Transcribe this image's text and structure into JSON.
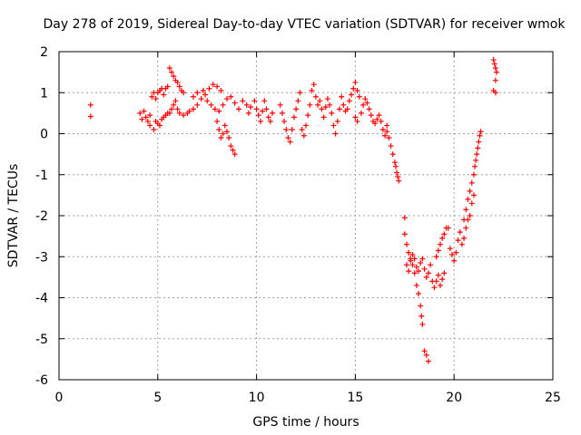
{
  "chart_data": {
    "type": "scatter",
    "title": "Day 278 of 2019, Sidereal Day-to-day VTEC variation (SDTVAR) for receiver wmok",
    "xlabel": "GPS time / hours",
    "ylabel": "SDTVAR / TECUs",
    "xlim": [
      0,
      25
    ],
    "ylim": [
      -6,
      2
    ],
    "xticks": [
      0,
      5,
      10,
      15,
      20,
      25
    ],
    "yticks": [
      -6,
      -5,
      -4,
      -3,
      -2,
      -1,
      0,
      1,
      2
    ],
    "grid": true,
    "marker": "+",
    "marker_color": "#ff0000",
    "series": [
      {
        "name": "SDTVAR",
        "points": [
          [
            1.6,
            0.7
          ],
          [
            1.6,
            0.42
          ],
          [
            4.1,
            0.5
          ],
          [
            4.2,
            0.35
          ],
          [
            4.3,
            0.55
          ],
          [
            4.4,
            0.4
          ],
          [
            4.5,
            0.3
          ],
          [
            4.6,
            0.45
          ],
          [
            4.7,
            0.9
          ],
          [
            4.8,
            1.0
          ],
          [
            4.9,
            0.85
          ],
          [
            5.0,
            1.0
          ],
          [
            5.1,
            1.05
          ],
          [
            5.2,
            1.1
          ],
          [
            5.3,
            0.95
          ],
          [
            5.4,
            1.1
          ],
          [
            5.5,
            1.15
          ],
          [
            4.6,
            0.2
          ],
          [
            4.8,
            0.1
          ],
          [
            4.9,
            0.3
          ],
          [
            5.0,
            0.25
          ],
          [
            5.1,
            0.2
          ],
          [
            5.2,
            0.35
          ],
          [
            5.3,
            0.4
          ],
          [
            5.4,
            0.45
          ],
          [
            5.5,
            0.5
          ],
          [
            5.6,
            1.6
          ],
          [
            5.7,
            1.5
          ],
          [
            5.8,
            1.4
          ],
          [
            5.9,
            1.3
          ],
          [
            6.0,
            1.25
          ],
          [
            6.1,
            1.15
          ],
          [
            6.2,
            1.05
          ],
          [
            6.3,
            1.0
          ],
          [
            5.6,
            0.5
          ],
          [
            5.7,
            0.6
          ],
          [
            5.8,
            0.7
          ],
          [
            5.9,
            0.8
          ],
          [
            6.0,
            0.6
          ],
          [
            6.1,
            0.5
          ],
          [
            6.3,
            0.45
          ],
          [
            6.5,
            0.5
          ],
          [
            6.6,
            0.55
          ],
          [
            6.8,
            0.6
          ],
          [
            7.0,
            0.7
          ],
          [
            7.2,
            0.85
          ],
          [
            7.4,
            0.95
          ],
          [
            7.6,
            1.1
          ],
          [
            7.8,
            1.2
          ],
          [
            8.0,
            1.15
          ],
          [
            8.2,
            1.05
          ],
          [
            6.8,
            0.9
          ],
          [
            7.0,
            1.0
          ],
          [
            7.3,
            1.05
          ],
          [
            7.5,
            0.8
          ],
          [
            7.7,
            0.7
          ],
          [
            7.9,
            0.6
          ],
          [
            8.1,
            0.55
          ],
          [
            8.0,
            0.3
          ],
          [
            8.1,
            0.1
          ],
          [
            8.2,
            -0.1
          ],
          [
            8.3,
            0.0
          ],
          [
            8.4,
            0.2
          ],
          [
            8.5,
            0.05
          ],
          [
            8.6,
            -0.1
          ],
          [
            8.7,
            -0.3
          ],
          [
            8.8,
            -0.4
          ],
          [
            8.9,
            -0.5
          ],
          [
            8.3,
            0.7
          ],
          [
            8.5,
            0.85
          ],
          [
            8.7,
            0.9
          ],
          [
            8.9,
            0.75
          ],
          [
            9.1,
            0.6
          ],
          [
            9.3,
            0.8
          ],
          [
            9.5,
            0.7
          ],
          [
            9.6,
            0.5
          ],
          [
            9.7,
            0.65
          ],
          [
            9.9,
            0.8
          ],
          [
            10.0,
            0.6
          ],
          [
            10.1,
            0.45
          ],
          [
            10.2,
            0.3
          ],
          [
            10.3,
            0.55
          ],
          [
            10.4,
            0.8
          ],
          [
            10.5,
            0.6
          ],
          [
            10.6,
            0.4
          ],
          [
            10.7,
            0.3
          ],
          [
            10.8,
            0.5
          ],
          [
            11.2,
            0.7
          ],
          [
            11.3,
            0.5
          ],
          [
            11.4,
            0.3
          ],
          [
            11.5,
            0.1
          ],
          [
            11.6,
            -0.1
          ],
          [
            11.7,
            -0.2
          ],
          [
            11.8,
            0.1
          ],
          [
            11.9,
            0.4
          ],
          [
            12.0,
            0.6
          ],
          [
            12.1,
            0.8
          ],
          [
            12.2,
            1.0
          ],
          [
            12.3,
            0.1
          ],
          [
            12.4,
            -0.05
          ],
          [
            12.5,
            0.2
          ],
          [
            12.6,
            0.45
          ],
          [
            12.7,
            0.7
          ],
          [
            12.8,
            1.05
          ],
          [
            12.9,
            1.2
          ],
          [
            13.0,
            0.9
          ],
          [
            13.1,
            0.7
          ],
          [
            13.2,
            0.8
          ],
          [
            13.3,
            0.6
          ],
          [
            13.4,
            0.4
          ],
          [
            13.5,
            0.65
          ],
          [
            13.6,
            0.85
          ],
          [
            13.7,
            0.7
          ],
          [
            13.8,
            0.5
          ],
          [
            13.9,
            0.2
          ],
          [
            14.0,
            0.0
          ],
          [
            14.1,
            0.3
          ],
          [
            14.2,
            0.6
          ],
          [
            14.3,
            0.9
          ],
          [
            14.4,
            0.7
          ],
          [
            14.5,
            0.55
          ],
          [
            14.6,
            0.6
          ],
          [
            14.7,
            0.8
          ],
          [
            14.8,
            0.95
          ],
          [
            14.9,
            1.1
          ],
          [
            15.0,
            1.25
          ],
          [
            15.1,
            1.05
          ],
          [
            15.2,
            0.9
          ],
          [
            15.0,
            0.4
          ],
          [
            15.1,
            0.3
          ],
          [
            15.3,
            0.5
          ],
          [
            15.4,
            0.7
          ],
          [
            15.5,
            0.85
          ],
          [
            15.6,
            0.75
          ],
          [
            15.7,
            0.6
          ],
          [
            15.8,
            0.45
          ],
          [
            15.9,
            0.3
          ],
          [
            16.0,
            0.25
          ],
          [
            16.1,
            0.35
          ],
          [
            16.2,
            0.45
          ],
          [
            16.3,
            0.3
          ],
          [
            16.4,
            0.1
          ],
          [
            16.5,
            -0.05
          ],
          [
            16.6,
            0.05
          ],
          [
            16.6,
            0.2
          ],
          [
            16.7,
            -0.1
          ],
          [
            16.8,
            -0.3
          ],
          [
            16.9,
            -0.5
          ],
          [
            17.0,
            -0.7
          ],
          [
            17.05,
            -0.8
          ],
          [
            17.1,
            -0.95
          ],
          [
            17.15,
            -1.05
          ],
          [
            17.2,
            -1.15
          ],
          [
            17.5,
            -2.05
          ],
          [
            17.5,
            -2.45
          ],
          [
            17.6,
            -2.7
          ],
          [
            17.7,
            -2.9
          ],
          [
            17.8,
            -3.05
          ],
          [
            17.9,
            -3.2
          ],
          [
            18.0,
            -3.4
          ],
          [
            18.1,
            -3.7
          ],
          [
            18.2,
            -3.9
          ],
          [
            18.3,
            -4.2
          ],
          [
            18.35,
            -4.45
          ],
          [
            18.4,
            -4.65
          ],
          [
            17.6,
            -3.2
          ],
          [
            17.7,
            -3.35
          ],
          [
            17.8,
            -3.1
          ],
          [
            17.9,
            -2.95
          ],
          [
            18.0,
            -3.05
          ],
          [
            18.1,
            -3.25
          ],
          [
            18.2,
            -3.35
          ],
          [
            18.3,
            -3.15
          ],
          [
            18.4,
            -3.05
          ],
          [
            18.5,
            -3.3
          ],
          [
            18.6,
            -3.5
          ],
          [
            18.7,
            -3.4
          ],
          [
            18.8,
            -3.2
          ],
          [
            18.9,
            -3.6
          ],
          [
            19.0,
            -3.75
          ],
          [
            19.1,
            -3.6
          ],
          [
            19.2,
            -3.45
          ],
          [
            19.3,
            -3.7
          ],
          [
            19.4,
            -3.55
          ],
          [
            19.5,
            -3.4
          ],
          [
            18.5,
            -5.3
          ],
          [
            18.6,
            -5.4
          ],
          [
            18.7,
            -5.55
          ],
          [
            19.1,
            -3.0
          ],
          [
            19.2,
            -2.85
          ],
          [
            19.3,
            -2.7
          ],
          [
            19.4,
            -2.55
          ],
          [
            19.5,
            -2.45
          ],
          [
            19.6,
            -2.3
          ],
          [
            19.7,
            -2.3
          ],
          [
            19.8,
            -2.8
          ],
          [
            19.9,
            -2.95
          ],
          [
            20.0,
            -3.1
          ],
          [
            20.1,
            -2.9
          ],
          [
            20.2,
            -2.6
          ],
          [
            20.3,
            -2.4
          ],
          [
            20.4,
            -2.7
          ],
          [
            20.5,
            -2.55
          ],
          [
            20.5,
            -2.1
          ],
          [
            20.6,
            -1.85
          ],
          [
            20.7,
            -1.6
          ],
          [
            20.8,
            -1.4
          ],
          [
            20.9,
            -1.2
          ],
          [
            21.0,
            -1.0
          ],
          [
            21.05,
            -0.8
          ],
          [
            21.1,
            -0.65
          ],
          [
            21.15,
            -0.5
          ],
          [
            21.2,
            -0.35
          ],
          [
            21.25,
            -0.2
          ],
          [
            21.3,
            -0.05
          ],
          [
            21.35,
            0.05
          ],
          [
            20.6,
            -2.3
          ],
          [
            20.7,
            -2.1
          ],
          [
            20.8,
            -2.0
          ],
          [
            20.9,
            -1.7
          ],
          [
            21.0,
            -1.5
          ],
          [
            22.0,
            1.8
          ],
          [
            22.05,
            1.7
          ],
          [
            22.1,
            1.6
          ],
          [
            22.15,
            1.5
          ],
          [
            22.1,
            1.3
          ],
          [
            22.0,
            1.05
          ],
          [
            22.1,
            1.0
          ]
        ]
      }
    ]
  }
}
